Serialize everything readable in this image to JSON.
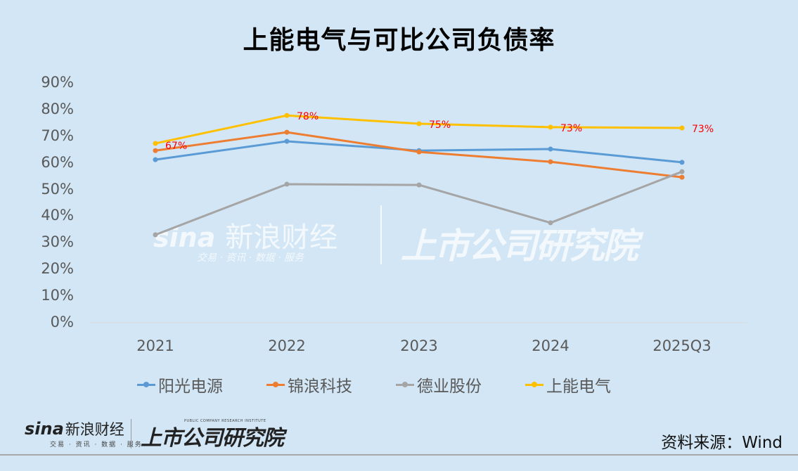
{
  "title": "上能电气与可比公司负债率",
  "chart_data": {
    "type": "line",
    "title": "上能电气与可比公司负债率",
    "xlabel": "",
    "ylabel": "",
    "categories": [
      "2021",
      "2022",
      "2023",
      "2024",
      "2025Q3"
    ],
    "y_ticks": [
      "90%",
      "80%",
      "70%",
      "60%",
      "50%",
      "40%",
      "30%",
      "20%",
      "10%",
      "0%"
    ],
    "ylim": [
      0,
      90
    ],
    "grid": false,
    "legend_position": "bottom",
    "series": [
      {
        "name": "阳光电源",
        "color": "#5b9bd5",
        "values": [
          61.2,
          68.1,
          64.6,
          65.2,
          60.2
        ]
      },
      {
        "name": "锦浪科技",
        "color": "#ed7d31",
        "values": [
          64.6,
          71.5,
          64.1,
          60.4,
          54.6
        ]
      },
      {
        "name": "德业股份",
        "color": "#a5a5a5",
        "values": [
          33.0,
          52.0,
          51.7,
          37.5,
          56.7
        ]
      },
      {
        "name": "上能电气",
        "color": "#ffc000",
        "values": [
          67.3,
          77.8,
          74.7,
          73.4,
          73.1
        ],
        "data_labels": [
          "67%",
          "78%",
          "75%",
          "73%",
          "73%"
        ],
        "label_color": "#ff0000"
      }
    ]
  },
  "legend": [
    "阳光电源",
    "锦浪科技",
    "德业股份",
    "上能电气"
  ],
  "footer": {
    "source": "资料来源：Wind",
    "sina_word": "sina",
    "sina_cn": "新浪财经",
    "sina_sub": "交易 · 资讯 · 数据 · 服务",
    "institute": "上市公司研究院",
    "institute_en": "PUBLIC COMPANY RESEARCH INSTITUTE"
  },
  "watermark": {
    "sina_cn": "新浪财经",
    "sina_sub": "交易 · 资讯 · 数据 · 服务",
    "institute": "上市公司研究院"
  }
}
